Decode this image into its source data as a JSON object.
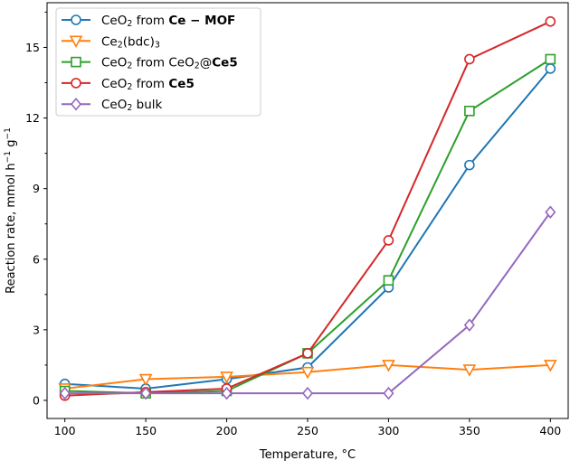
{
  "chart_data": {
    "type": "line",
    "xlabel": "Temperature, °C",
    "ylabel": [
      {
        "text": "Reaction rate, mmol h"
      },
      {
        "text": "−1",
        "sup": true
      },
      {
        "text": " g"
      },
      {
        "text": "−1",
        "sup": true
      }
    ],
    "xlim": [
      89,
      411
    ],
    "ylim": [
      -0.77,
      16.9
    ],
    "xticks": [
      100,
      150,
      200,
      250,
      300,
      350,
      400
    ],
    "yticks": [
      0,
      3,
      6,
      9,
      12,
      15
    ],
    "yminor_step": 1.5,
    "grid": false,
    "legend_position": "top-left",
    "x": [
      100,
      150,
      200,
      250,
      300,
      350,
      400
    ],
    "series": [
      {
        "name": [
          {
            "text": "CeO"
          },
          {
            "text": "2",
            "sub": true
          },
          {
            "text": " from "
          },
          {
            "text": "Ce − MOF",
            "bold": true
          }
        ],
        "color": "#1f77b4",
        "marker": "circle",
        "values": [
          0.7,
          0.5,
          0.9,
          1.4,
          4.8,
          10.0,
          14.1
        ]
      },
      {
        "name": [
          {
            "text": "Ce"
          },
          {
            "text": "2",
            "sub": true
          },
          {
            "text": "(bdc)"
          },
          {
            "text": "3",
            "sub": true
          }
        ],
        "color": "#ff7f0e",
        "marker": "triangle-down",
        "values": [
          0.5,
          0.9,
          1.0,
          1.2,
          1.5,
          1.3,
          1.5
        ]
      },
      {
        "name": [
          {
            "text": "CeO"
          },
          {
            "text": "2",
            "sub": true
          },
          {
            "text": " from CeO"
          },
          {
            "text": "2",
            "sub": true
          },
          {
            "text": "@"
          },
          {
            "text": "Ce5",
            "bold": true
          }
        ],
        "color": "#2ca02c",
        "marker": "square",
        "values": [
          0.4,
          0.3,
          0.4,
          2.0,
          5.1,
          12.3,
          14.5
        ]
      },
      {
        "name": [
          {
            "text": "CeO"
          },
          {
            "text": "2",
            "sub": true
          },
          {
            "text": " from "
          },
          {
            "text": "Ce5",
            "bold": true
          }
        ],
        "color": "#d62728",
        "marker": "circle",
        "values": [
          0.2,
          0.35,
          0.5,
          2.0,
          6.8,
          14.5,
          16.1
        ]
      },
      {
        "name": [
          {
            "text": "CeO"
          },
          {
            "text": "2",
            "sub": true
          },
          {
            "text": " bulk"
          }
        ],
        "color": "#9467bd",
        "marker": "diamond",
        "values": [
          0.3,
          0.3,
          0.3,
          0.3,
          0.3,
          3.2,
          8.0
        ]
      }
    ]
  }
}
